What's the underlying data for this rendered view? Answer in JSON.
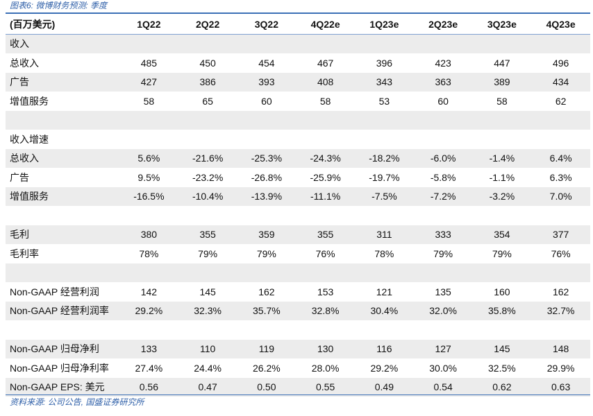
{
  "caption": "图表6: 微博财务预测: 季度",
  "source": "资料来源: 公司公告, 国盛证券研究所",
  "header": [
    "(百万美元)",
    "1Q22",
    "2Q22",
    "3Q22",
    "4Q22e",
    "1Q23e",
    "2Q23e",
    "3Q23e",
    "4Q23e"
  ],
  "rows": [
    {
      "label": "收入",
      "values": [
        "",
        "",
        "",
        "",
        "",
        "",
        "",
        ""
      ]
    },
    {
      "label": "总收入",
      "values": [
        "485",
        "450",
        "454",
        "467",
        "396",
        "423",
        "447",
        "496"
      ]
    },
    {
      "label": "广告",
      "values": [
        "427",
        "386",
        "393",
        "408",
        "343",
        "363",
        "389",
        "434"
      ]
    },
    {
      "label": "增值服务",
      "values": [
        "58",
        "65",
        "60",
        "58",
        "53",
        "60",
        "58",
        "62"
      ]
    },
    {
      "label": "",
      "values": [
        "",
        "",
        "",
        "",
        "",
        "",
        "",
        ""
      ]
    },
    {
      "label": "收入增速",
      "values": [
        "",
        "",
        "",
        "",
        "",
        "",
        "",
        ""
      ]
    },
    {
      "label": "总收入",
      "values": [
        "5.6%",
        "-21.6%",
        "-25.3%",
        "-24.3%",
        "-18.2%",
        "-6.0%",
        "-1.4%",
        "6.4%"
      ]
    },
    {
      "label": "广告",
      "values": [
        "9.5%",
        "-23.2%",
        "-26.8%",
        "-25.9%",
        "-19.7%",
        "-5.8%",
        "-1.1%",
        "6.3%"
      ]
    },
    {
      "label": "增值服务",
      "values": [
        "-16.5%",
        "-10.4%",
        "-13.9%",
        "-11.1%",
        "-7.5%",
        "-7.2%",
        "-3.2%",
        "7.0%"
      ]
    },
    {
      "label": "",
      "values": [
        "",
        "",
        "",
        "",
        "",
        "",
        "",
        ""
      ]
    },
    {
      "label": "毛利",
      "values": [
        "380",
        "355",
        "359",
        "355",
        "311",
        "333",
        "354",
        "377"
      ]
    },
    {
      "label": "毛利率",
      "values": [
        "78%",
        "79%",
        "79%",
        "76%",
        "78%",
        "79%",
        "79%",
        "76%"
      ]
    },
    {
      "label": "",
      "values": [
        "",
        "",
        "",
        "",
        "",
        "",
        "",
        ""
      ]
    },
    {
      "label": "Non-GAAP 经营利润",
      "values": [
        "142",
        "145",
        "162",
        "153",
        "121",
        "135",
        "160",
        "162"
      ]
    },
    {
      "label": "Non-GAAP 经营利润率",
      "values": [
        "29.2%",
        "32.3%",
        "35.7%",
        "32.8%",
        "30.4%",
        "32.0%",
        "35.8%",
        "32.7%"
      ]
    },
    {
      "label": "",
      "values": [
        "",
        "",
        "",
        "",
        "",
        "",
        "",
        ""
      ]
    },
    {
      "label": "Non-GAAP 归母净利",
      "values": [
        "133",
        "110",
        "119",
        "130",
        "116",
        "127",
        "145",
        "148"
      ]
    },
    {
      "label": "Non-GAAP 归母净利率",
      "values": [
        "27.4%",
        "24.4%",
        "26.2%",
        "28.0%",
        "29.2%",
        "30.0%",
        "32.5%",
        "29.9%"
      ]
    },
    {
      "label": "Non-GAAP EPS: 美元",
      "values": [
        "0.56",
        "0.47",
        "0.50",
        "0.55",
        "0.49",
        "0.54",
        "0.62",
        "0.63"
      ]
    }
  ]
}
